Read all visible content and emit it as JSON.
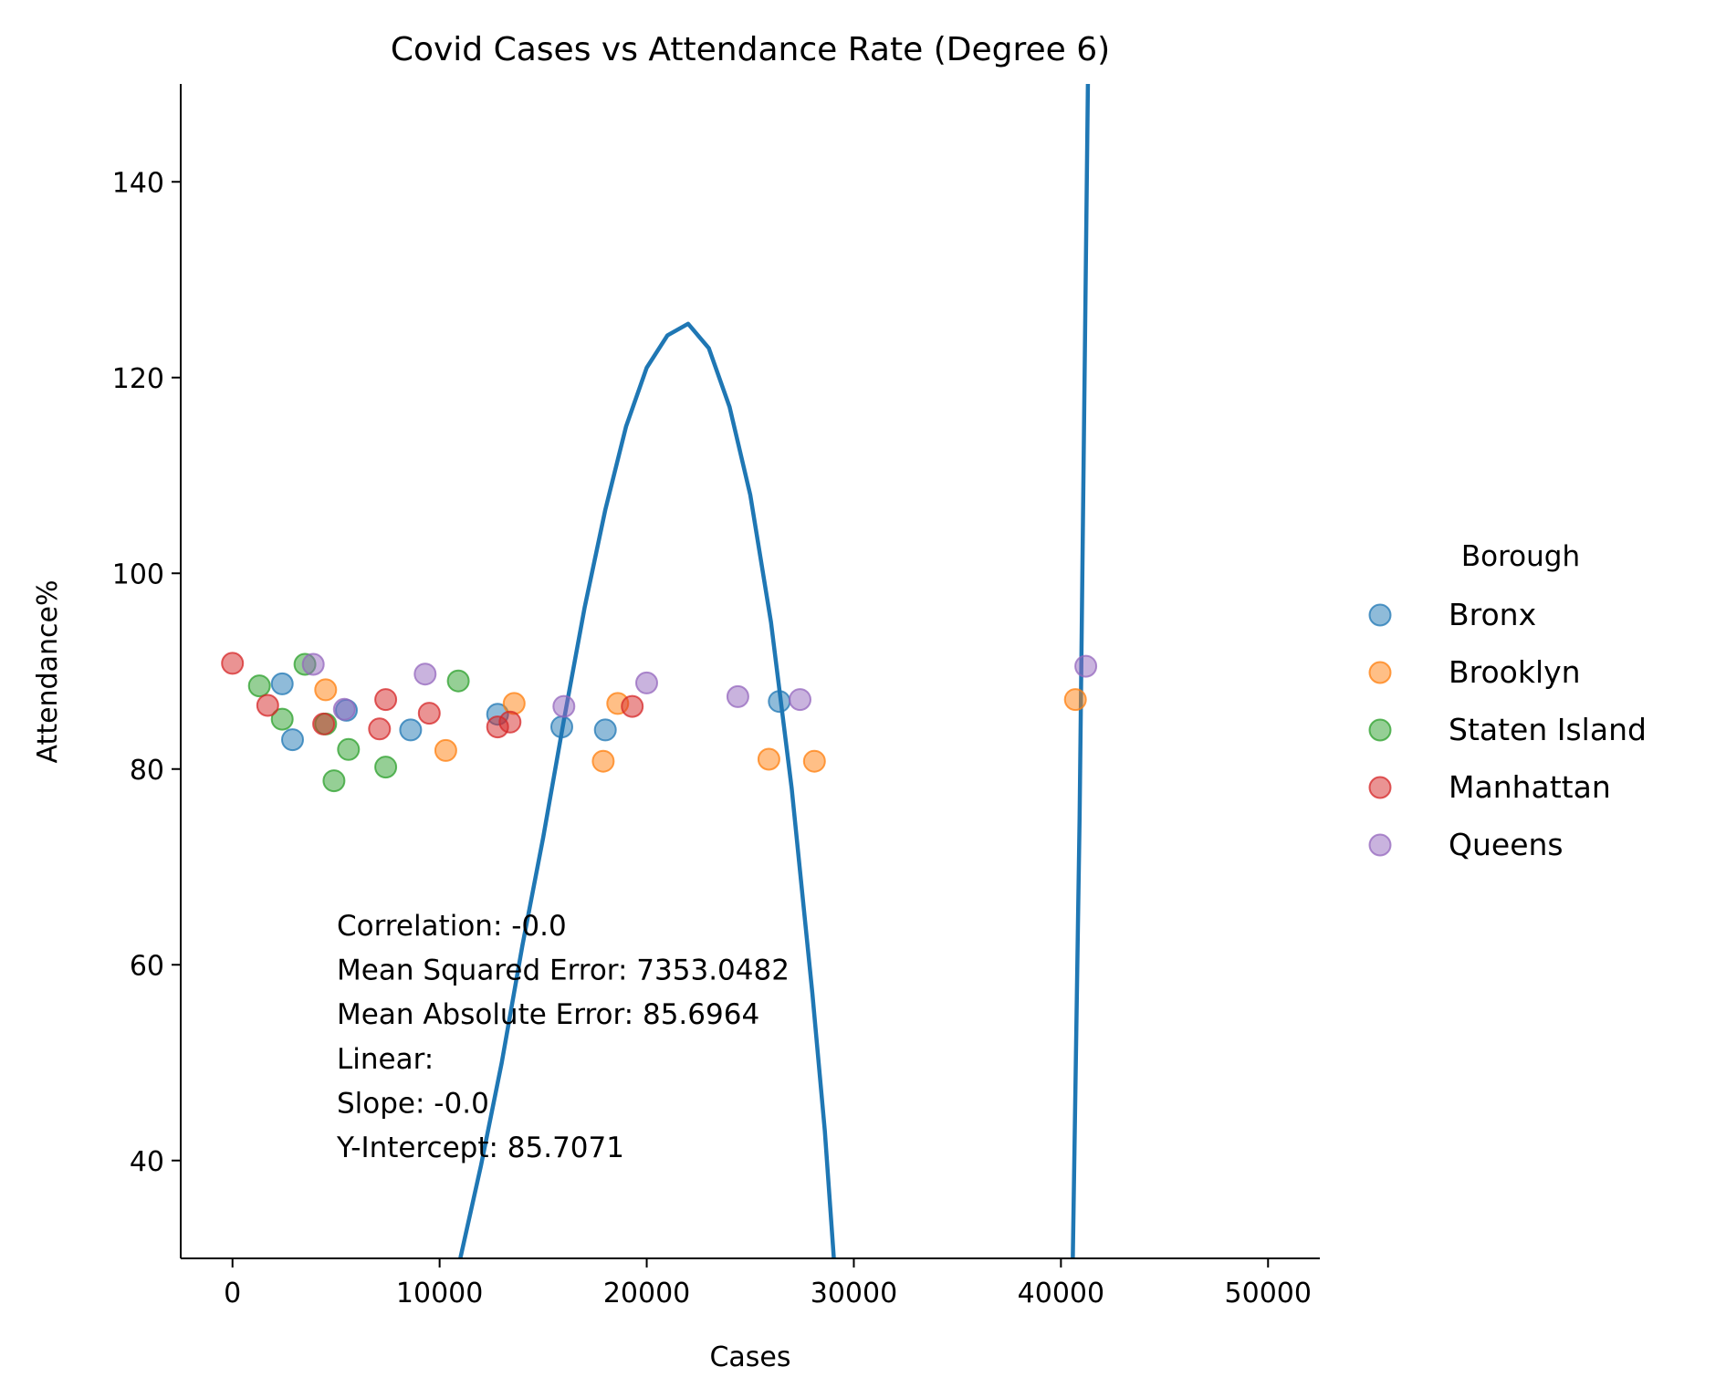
{
  "chart_data": {
    "type": "scatter",
    "title": "Covid Cases vs Attendance Rate (Degree 6)",
    "xlabel": "Cases",
    "ylabel": "Attendance%",
    "xlim": [
      -2500,
      52500
    ],
    "ylim": [
      30,
      150
    ],
    "xticks": [
      0,
      10000,
      20000,
      30000,
      40000,
      50000
    ],
    "yticks": [
      40,
      60,
      80,
      100,
      120,
      140
    ],
    "grid": false,
    "legend": {
      "title": "Borough",
      "placement": "right-outside",
      "entries": [
        "Bronx",
        "Brooklyn",
        "Staten Island",
        "Manhattan",
        "Queens"
      ]
    },
    "series": [
      {
        "name": "Bronx",
        "color": "#1f77b4",
        "points": [
          [
            2400,
            88.7
          ],
          [
            2900,
            83.0
          ],
          [
            5500,
            86.0
          ],
          [
            8600,
            84.0
          ],
          [
            12800,
            85.6
          ],
          [
            15900,
            84.3
          ],
          [
            18000,
            84.0
          ],
          [
            26400,
            86.9
          ]
        ]
      },
      {
        "name": "Brooklyn",
        "color": "#ff7f0e",
        "points": [
          [
            4500,
            88.1
          ],
          [
            10300,
            81.9
          ],
          [
            13600,
            86.7
          ],
          [
            17900,
            80.8
          ],
          [
            18600,
            86.7
          ],
          [
            25900,
            81.0
          ],
          [
            28100,
            80.8
          ],
          [
            40700,
            87.1
          ]
        ]
      },
      {
        "name": "Staten Island",
        "color": "#2ca02c",
        "points": [
          [
            1300,
            88.5
          ],
          [
            2400,
            85.1
          ],
          [
            3500,
            90.7
          ],
          [
            4500,
            84.6
          ],
          [
            4900,
            78.8
          ],
          [
            5600,
            82.0
          ],
          [
            7400,
            80.2
          ],
          [
            10900,
            89.0
          ]
        ]
      },
      {
        "name": "Manhattan",
        "color": "#d62728",
        "points": [
          [
            0,
            90.8
          ],
          [
            1700,
            86.5
          ],
          [
            4400,
            84.6
          ],
          [
            7100,
            84.1
          ],
          [
            7400,
            87.1
          ],
          [
            9500,
            85.7
          ],
          [
            12800,
            84.3
          ],
          [
            13400,
            84.8
          ],
          [
            19300,
            86.4
          ]
        ]
      },
      {
        "name": "Queens",
        "color": "#9467bd",
        "points": [
          [
            3900,
            90.7
          ],
          [
            5400,
            86.1
          ],
          [
            9300,
            89.7
          ],
          [
            16000,
            86.4
          ],
          [
            20000,
            88.8
          ],
          [
            24400,
            87.4
          ],
          [
            27400,
            87.1
          ],
          [
            41200,
            90.5
          ]
        ]
      }
    ],
    "fit_line": {
      "color": "#1f77b4",
      "points": [
        [
          10500,
          20
        ],
        [
          11000,
          30.0
        ],
        [
          12000,
          39.5
        ],
        [
          13000,
          50.0
        ],
        [
          14000,
          62.0
        ],
        [
          15000,
          73.0
        ],
        [
          16000,
          85.0
        ],
        [
          17000,
          96.5
        ],
        [
          18000,
          106.5
        ],
        [
          19000,
          115.0
        ],
        [
          20000,
          121.0
        ],
        [
          21000,
          124.3
        ],
        [
          22000,
          125.5
        ],
        [
          23000,
          123.0
        ],
        [
          24000,
          117.0
        ],
        [
          25000,
          108.0
        ],
        [
          26000,
          95.0
        ],
        [
          27000,
          78.0
        ],
        [
          28000,
          57.0
        ],
        [
          28600,
          43.0
        ],
        [
          29000,
          31.0
        ],
        [
          29200,
          25
        ],
        [
          40500,
          20
        ],
        [
          40900,
          75.0
        ],
        [
          41300,
          150
        ],
        [
          41330,
          160
        ]
      ]
    },
    "annotation": [
      "Correlation: -0.0",
      "Mean Squared Error: 7353.0482",
      "Mean Absolute Error: 85.6964",
      "Linear:",
      "Slope: -0.0",
      "Y-Intercept: 85.7071"
    ]
  }
}
